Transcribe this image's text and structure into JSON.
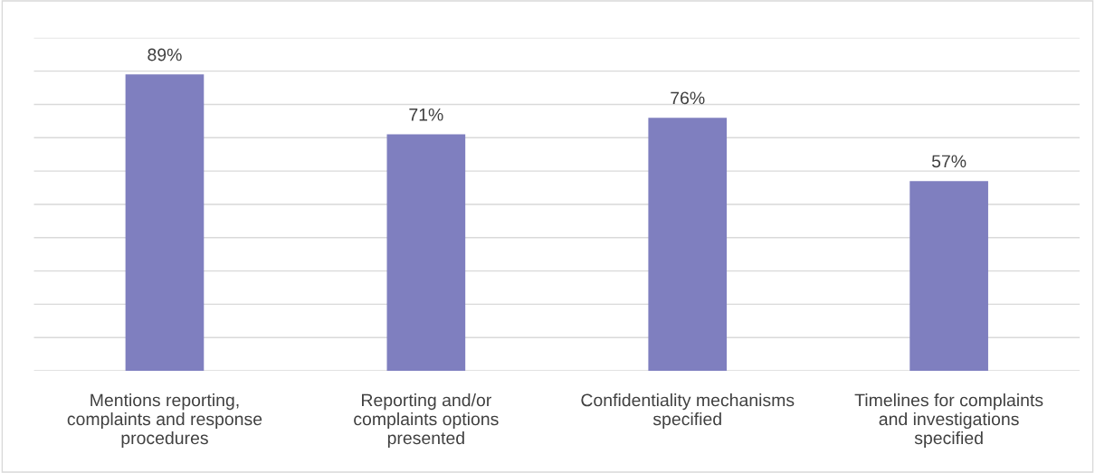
{
  "chart_data": {
    "type": "bar",
    "categories": [
      "Mentions reporting, complaints and response procedures",
      "Reporting and/or complaints options presented",
      "Confidentiality mechanisms specified",
      "Timelines for complaints and investigations specified"
    ],
    "values": [
      89,
      71,
      76,
      57
    ],
    "value_labels": [
      "89%",
      "71%",
      "76%",
      "57%"
    ],
    "color": "#7f7fbf",
    "ylim": [
      0,
      100
    ],
    "yticks": [
      {
        "value": 0,
        "label": null
      },
      {
        "value": 10,
        "label": null
      },
      {
        "value": 20,
        "label": null
      },
      {
        "value": 30,
        "label": null
      },
      {
        "value": 40,
        "label": null
      },
      {
        "value": 50,
        "label": null
      },
      {
        "value": 60,
        "label": null
      },
      {
        "value": 70,
        "label": null
      },
      {
        "value": 80,
        "label": null
      },
      {
        "value": 90,
        "label": null
      },
      {
        "value": 100,
        "label": null
      }
    ],
    "grid": "y",
    "tick_labels": "x"
  }
}
